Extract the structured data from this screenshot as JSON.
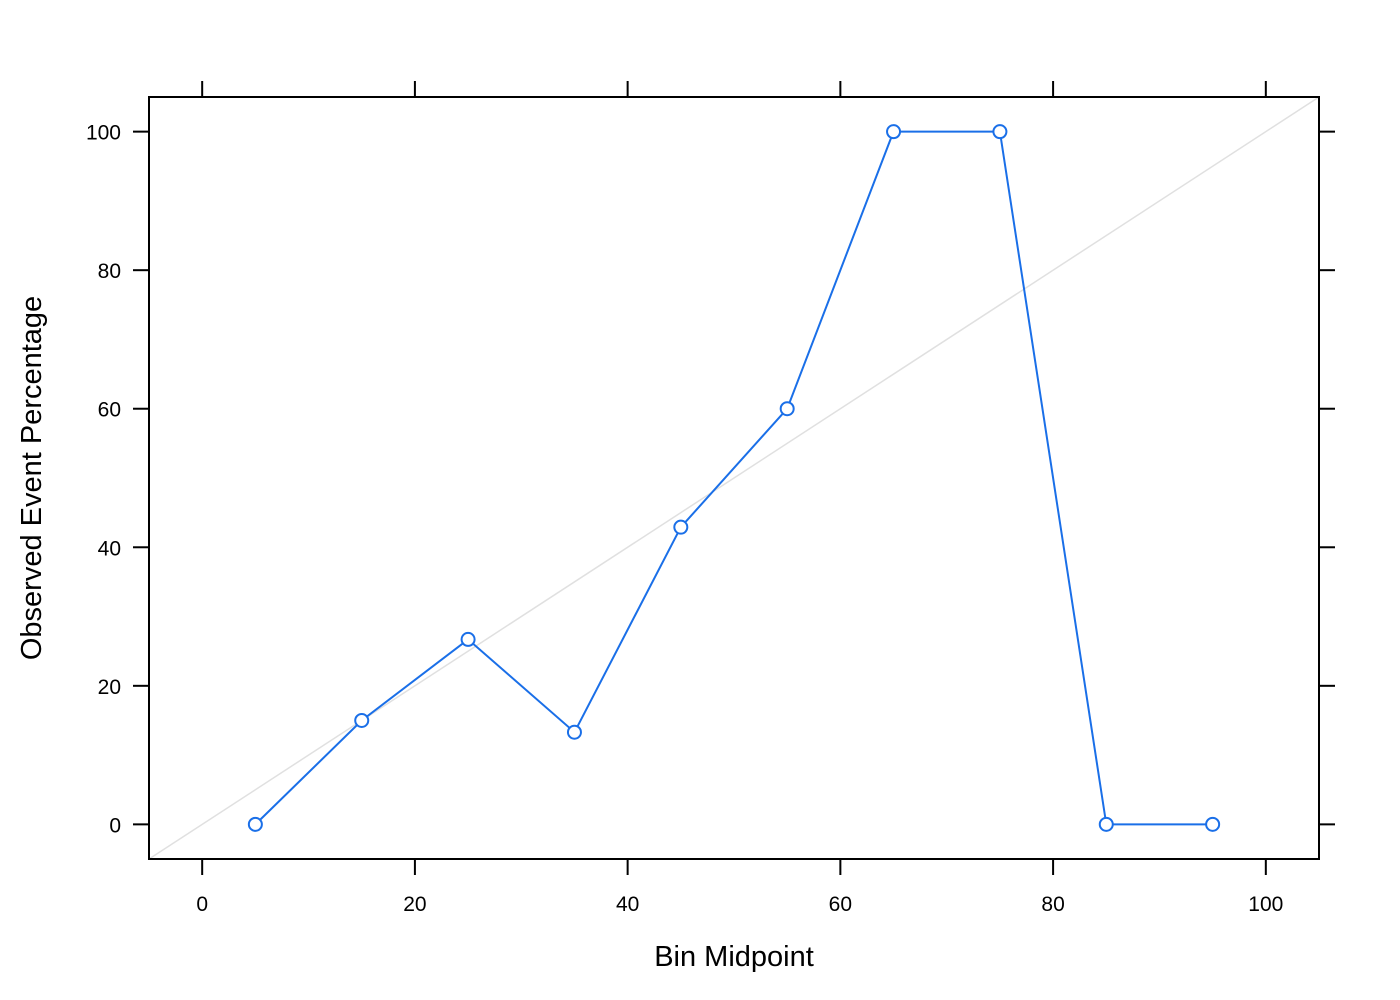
{
  "chart_data": {
    "type": "line",
    "title": "",
    "xlabel": "Bin Midpoint",
    "ylabel": "Observed Event Percentage",
    "xlim": [
      -5,
      105
    ],
    "ylim": [
      -5,
      105
    ],
    "x_ticks": [
      0,
      20,
      40,
      60,
      80,
      100
    ],
    "y_ticks": [
      0,
      20,
      40,
      60,
      80,
      100
    ],
    "grid": false,
    "reference_line": {
      "from": [
        -5,
        -5
      ],
      "to": [
        105,
        105
      ],
      "color": "#e0e0e0"
    },
    "series": [
      {
        "x": [
          5,
          15,
          25,
          35,
          45,
          55,
          65,
          75,
          85,
          95
        ],
        "y": [
          0,
          15,
          26.7,
          13.3,
          42.9,
          60,
          100,
          100,
          0,
          0
        ],
        "color": "#1a6fe8",
        "marker": "open-circle"
      }
    ]
  }
}
